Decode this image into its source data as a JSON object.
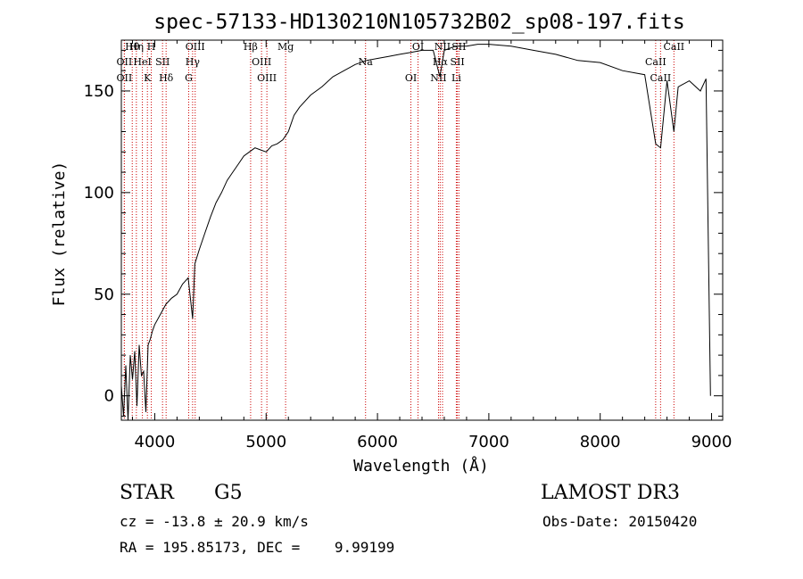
{
  "chart_data": {
    "type": "line",
    "title": "spec-57133-HD130210N105732B02_sp08-197.fits",
    "xlabel": "Wavelength (Å)",
    "ylabel": "Flux (relative)",
    "xlim": [
      3700,
      9100
    ],
    "ylim": [
      -12,
      175
    ],
    "xticks": [
      4000,
      5000,
      6000,
      7000,
      8000,
      9000
    ],
    "yticks": [
      0,
      50,
      100,
      150
    ],
    "xtick_labels": [
      "4000",
      "5000",
      "6000",
      "7000",
      "8000",
      "9000"
    ],
    "ytick_labels": [
      "0",
      "50",
      "100",
      "150"
    ],
    "grid": false,
    "series": [
      {
        "x": [
          3700,
          3720,
          3740,
          3760,
          3780,
          3800,
          3820,
          3840,
          3860,
          3880,
          3900,
          3920,
          3940,
          3960,
          3980,
          4000,
          4050,
          4100,
          4150,
          4200,
          4250,
          4300,
          4340,
          4360,
          4400,
          4450,
          4500,
          4550,
          4600,
          4650,
          4700,
          4750,
          4800,
          4850,
          4900,
          4950,
          5000,
          5050,
          5100,
          5150,
          5200,
          5250,
          5300,
          5400,
          5500,
          5600,
          5700,
          5800,
          5900,
          6000,
          6100,
          6200,
          6300,
          6400,
          6500,
          6560,
          6600,
          6700,
          6800,
          6900,
          7000,
          7200,
          7400,
          7600,
          7800,
          8000,
          8200,
          8400,
          8498,
          8542,
          8600,
          8662,
          8700,
          8800,
          8900,
          8950,
          8990
        ],
        "y": [
          5,
          -10,
          15,
          -12,
          20,
          8,
          22,
          -5,
          25,
          10,
          12,
          -8,
          25,
          28,
          32,
          35,
          40,
          45,
          48,
          50,
          55,
          58,
          38,
          65,
          72,
          80,
          88,
          95,
          100,
          106,
          110,
          114,
          118,
          120,
          122,
          121,
          120,
          123,
          124,
          126,
          130,
          138,
          142,
          148,
          152,
          157,
          160,
          163,
          165,
          166,
          167,
          168,
          169,
          170,
          170,
          157,
          170,
          172,
          172,
          173,
          173,
          172,
          170,
          168,
          165,
          164,
          160,
          158,
          124,
          122,
          155,
          130,
          152,
          155,
          150,
          156,
          0
        ]
      }
    ],
    "annotations": [
      {
        "name": "Hθ",
        "x": 3798
      },
      {
        "name": "OII",
        "x": 3727
      },
      {
        "name": "OII",
        "x": 3727
      },
      {
        "name": "Hη",
        "x": 3835
      },
      {
        "name": "HeI",
        "x": 3889
      },
      {
        "name": "K",
        "x": 3934
      },
      {
        "name": "H",
        "x": 3969
      },
      {
        "name": "SII",
        "x": 4070
      },
      {
        "name": "Hδ",
        "x": 4102
      },
      {
        "name": "OIII",
        "x": 4363
      },
      {
        "name": "Hγ",
        "x": 4340
      },
      {
        "name": "G",
        "x": 4305
      },
      {
        "name": "Hβ",
        "x": 4861
      },
      {
        "name": "OIII",
        "x": 4959
      },
      {
        "name": "OIII",
        "x": 5007
      },
      {
        "name": "Mg",
        "x": 5175
      },
      {
        "name": "Na",
        "x": 5893
      },
      {
        "name": "OI",
        "x": 6300
      },
      {
        "name": "OI",
        "x": 6364
      },
      {
        "name": "Hα",
        "x": 6563
      },
      {
        "name": "NII",
        "x": 6548
      },
      {
        "name": "NII",
        "x": 6584
      },
      {
        "name": "SII",
        "x": 6717
      },
      {
        "name": "Li",
        "x": 6708
      },
      {
        "name": "SII",
        "x": 6731
      },
      {
        "name": "CaII",
        "x": 8498
      },
      {
        "name": "CaII",
        "x": 8542
      },
      {
        "name": "CaII",
        "x": 8662
      }
    ]
  },
  "info": {
    "star_type": "STAR",
    "spectral_class": "G5",
    "survey": "LAMOST DR3",
    "cz": "cz = -13.8 ± 20.9 km/s",
    "obs_date": "Obs-Date: 20150420",
    "radec": "RA = 195.85173, DEC =    9.99199"
  },
  "colors": {
    "line_marker": "#cc0000",
    "spectrum": "#000000"
  }
}
